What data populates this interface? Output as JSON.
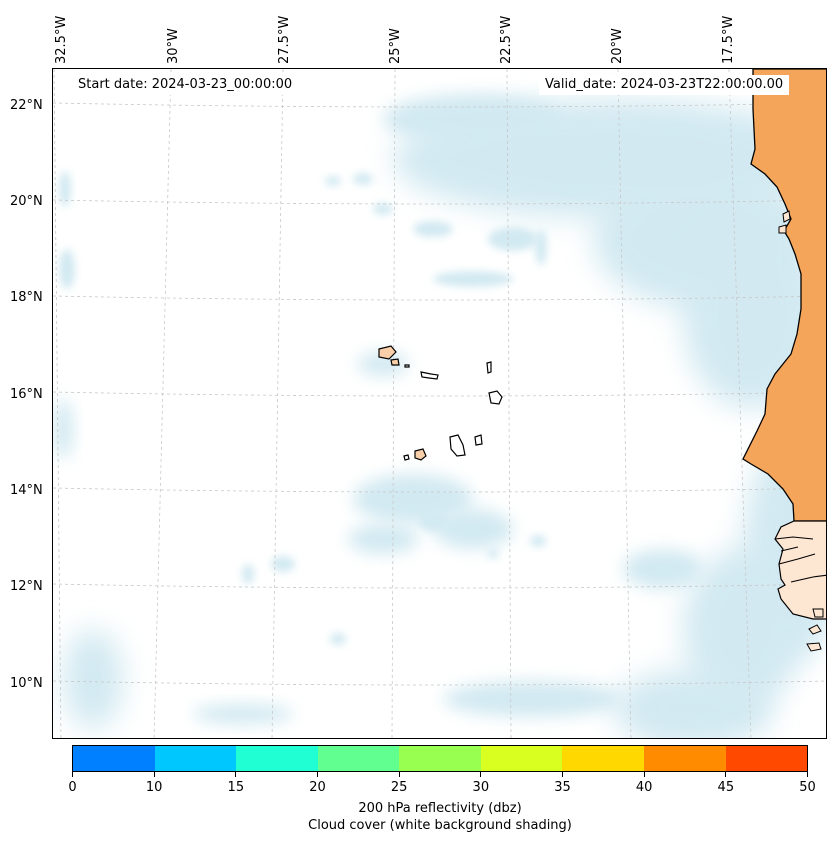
{
  "map": {
    "start_date": "Start date: 2024-03-23_00:00:00",
    "valid_date": "Valid_date: 2024-03-23T22:00:00.00",
    "lon_labels": [
      "32.5°W",
      "30°W",
      "27.5°W",
      "25°W",
      "22.5°W",
      "20°W",
      "17.5°W"
    ],
    "lat_labels": [
      "22°N",
      "20°N",
      "18°N",
      "16°N",
      "14°N",
      "12°N",
      "10°N"
    ]
  },
  "colorbar": {
    "ticks": [
      "0",
      "10",
      "15",
      "20",
      "25",
      "30",
      "35",
      "40",
      "45",
      "50"
    ],
    "colors": [
      "#0080ff",
      "#00c8ff",
      "#20ffd4",
      "#60ff90",
      "#98ff50",
      "#d8ff20",
      "#ffd800",
      "#ff8c00",
      "#ff4800"
    ],
    "label_line1": "200 hPa reflectivity (dbz)",
    "label_line2": "Cloud cover (white background shading)"
  },
  "colors": {
    "land": "#f5a55a",
    "island": "#f8cfa8",
    "cloud": "#add8e6"
  }
}
